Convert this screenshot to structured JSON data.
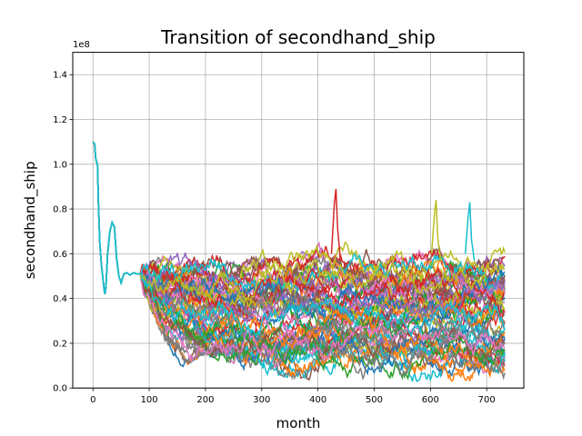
{
  "chart_data": {
    "type": "line",
    "title": "Transition of secondhand_ship",
    "xlabel": "month",
    "ylabel": "secondhand_ship",
    "y_offset_label": "1e8",
    "xlim": [
      -36,
      766
    ],
    "ylim": [
      0,
      150000000
    ],
    "x_ticks": [
      0,
      100,
      200,
      300,
      400,
      500,
      600,
      700
    ],
    "y_ticks": [
      0,
      20000000,
      40000000,
      60000000,
      80000000,
      100000000,
      120000000,
      140000000
    ],
    "x_tick_labels": [
      "0",
      "100",
      "200",
      "300",
      "400",
      "500",
      "600",
      "700"
    ],
    "y_tick_labels": [
      "0.0",
      "0.2",
      "0.4",
      "0.6",
      "0.8",
      "1.0",
      "1.2",
      "1.4"
    ],
    "grid": true,
    "legend": "none",
    "x_max": 732,
    "history_end_month": 84,
    "series_count": 60,
    "history_keypoints": [
      [
        0,
        110000000
      ],
      [
        3,
        109000000
      ],
      [
        5,
        102000000
      ],
      [
        8,
        100000000
      ],
      [
        10,
        80000000
      ],
      [
        12,
        65000000
      ],
      [
        15,
        55000000
      ],
      [
        18,
        48000000
      ],
      [
        21,
        42000000
      ],
      [
        23,
        45000000
      ],
      [
        26,
        60000000
      ],
      [
        30,
        70000000
      ],
      [
        34,
        74000000
      ],
      [
        38,
        72000000
      ],
      [
        42,
        58000000
      ],
      [
        46,
        50000000
      ],
      [
        50,
        47000000
      ],
      [
        55,
        51000000
      ],
      [
        60,
        51500000
      ],
      [
        66,
        50500000
      ],
      [
        72,
        51500000
      ],
      [
        78,
        51000000
      ],
      [
        84,
        51000000
      ]
    ],
    "notable_peaks": [
      {
        "month": 432,
        "value": 89000000
      },
      {
        "month": 610,
        "value": 84000000
      },
      {
        "month": 670,
        "value": 83000000
      }
    ],
    "envelope": {
      "upper": [
        [
          84,
          55000000
        ],
        [
          150,
          62000000
        ],
        [
          200,
          63000000
        ],
        [
          260,
          55000000
        ],
        [
          300,
          62000000
        ],
        [
          400,
          72000000
        ],
        [
          500,
          64000000
        ],
        [
          600,
          80000000
        ],
        [
          700,
          75000000
        ],
        [
          732,
          70000000
        ]
      ],
      "lower": [
        [
          84,
          45000000
        ],
        [
          150,
          8000000
        ],
        [
          200,
          15000000
        ],
        [
          260,
          7000000
        ],
        [
          300,
          6000000
        ],
        [
          400,
          3000000
        ],
        [
          500,
          2000000
        ],
        [
          600,
          3000000
        ],
        [
          700,
          3000000
        ],
        [
          732,
          4000000
        ]
      ]
    },
    "colors": [
      "#1f77b4",
      "#ff7f0e",
      "#2ca02c",
      "#d62728",
      "#9467bd",
      "#8c564b",
      "#e377c2",
      "#7f7f7f",
      "#bcbd22",
      "#17becf"
    ]
  }
}
